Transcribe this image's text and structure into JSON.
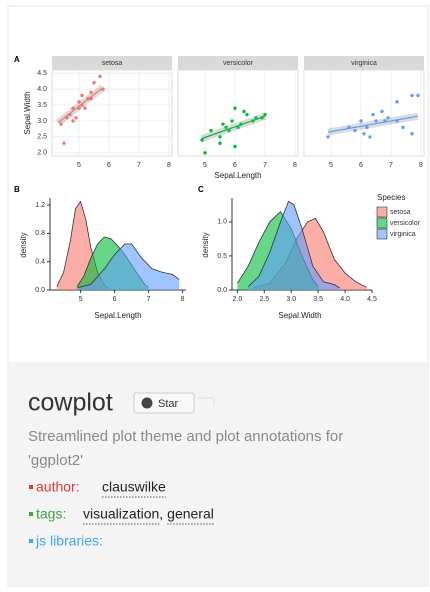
{
  "plot": {
    "panel_a": {
      "label": "A",
      "type": "scatter",
      "xlabel": "Sepal.Length",
      "ylabel": "Sepal.Width",
      "xlim": [
        4.1,
        8.1
      ],
      "ylim": [
        1.9,
        4.6
      ],
      "xticks": [
        5,
        6,
        7,
        8
      ],
      "yticks": [
        {
          "value": 2,
          "label": "2.0"
        },
        2.5,
        {
          "value": 3,
          "label": "3.0"
        },
        3.5,
        {
          "value": 4,
          "label": "4.0"
        },
        4.5
      ],
      "facets": [
        {
          "name": "setosa",
          "color": "#f8766d",
          "x": [
            4.4,
            4.6,
            4.7,
            4.8,
            4.9,
            5.0,
            5.0,
            5.1,
            5.1,
            5.2,
            5.4,
            5.4,
            5.5,
            5.7,
            5.8,
            4.5,
            5.3,
            4.8
          ],
          "y": [
            2.9,
            3.1,
            3.2,
            3.0,
            3.1,
            3.4,
            3.6,
            3.5,
            3.8,
            3.4,
            3.9,
            3.7,
            4.2,
            4.4,
            4.0,
            2.3,
            3.7,
            3.4
          ],
          "fit_x": [
            4.3,
            5.8
          ],
          "fit_y": [
            2.95,
            4.05
          ]
        },
        {
          "name": "versicolor",
          "color": "#00ba38",
          "x": [
            4.9,
            5.0,
            5.2,
            5.5,
            5.6,
            5.7,
            5.8,
            6.0,
            6.0,
            6.1,
            6.2,
            6.3,
            6.4,
            6.6,
            6.7,
            6.9,
            7.0,
            5.9,
            5.5
          ],
          "y": [
            2.4,
            2.0,
            2.7,
            2.3,
            2.9,
            2.8,
            2.7,
            2.2,
            3.4,
            2.8,
            2.9,
            3.3,
            3.2,
            3.0,
            3.1,
            3.1,
            3.2,
            3.0,
            2.5
          ],
          "fit_x": [
            4.9,
            7.0
          ],
          "fit_y": [
            2.45,
            3.15
          ]
        },
        {
          "name": "virginica",
          "color": "#619cff",
          "x": [
            4.9,
            5.8,
            6.0,
            6.2,
            6.3,
            6.4,
            6.5,
            6.7,
            6.9,
            7.2,
            7.7,
            7.7,
            7.9,
            7.2,
            6.1,
            6.8,
            7.4,
            5.6
          ],
          "y": [
            2.5,
            2.7,
            3.0,
            2.8,
            2.5,
            3.2,
            3.0,
            3.3,
            3.1,
            3.6,
            3.8,
            2.6,
            3.8,
            3.0,
            2.6,
            3.0,
            2.8,
            2.8
          ],
          "fit_x": [
            4.9,
            7.9
          ],
          "fit_y": [
            2.65,
            3.15
          ]
        }
      ]
    },
    "panel_b": {
      "label": "B",
      "type": "area",
      "xlabel": "Sepal.Length",
      "ylabel": "density",
      "xlim": [
        4.1,
        8.1
      ],
      "ylim": [
        0,
        1.3
      ],
      "xticks": [
        5,
        6,
        7,
        8
      ],
      "yticks": [
        {
          "value": 0,
          "label": "0.0"
        },
        0.4,
        0.8,
        1.2
      ],
      "series": [
        {
          "name": "setosa",
          "color": "#f8766d",
          "x": [
            4.3,
            4.5,
            4.7,
            4.85,
            5.0,
            5.15,
            5.3,
            5.5,
            5.7,
            5.8
          ],
          "y": [
            0.05,
            0.25,
            0.7,
            1.15,
            1.25,
            1.0,
            0.6,
            0.25,
            0.07,
            0.03
          ]
        },
        {
          "name": "versicolor",
          "color": "#00ba38",
          "x": [
            4.9,
            5.1,
            5.3,
            5.5,
            5.7,
            5.9,
            6.1,
            6.3,
            6.6,
            6.9,
            7.0
          ],
          "y": [
            0.05,
            0.2,
            0.45,
            0.65,
            0.75,
            0.72,
            0.62,
            0.5,
            0.28,
            0.07,
            0.04
          ]
        },
        {
          "name": "virginica",
          "color": "#619cff",
          "x": [
            4.9,
            5.3,
            5.7,
            6.0,
            6.3,
            6.5,
            6.8,
            7.1,
            7.4,
            7.7,
            7.9
          ],
          "y": [
            0.03,
            0.08,
            0.3,
            0.5,
            0.65,
            0.65,
            0.45,
            0.3,
            0.25,
            0.22,
            0.15
          ]
        }
      ]
    },
    "panel_c": {
      "label": "C",
      "type": "area",
      "xlabel": "Sepal.Width",
      "ylabel": "density",
      "xlim": [
        1.9,
        4.5
      ],
      "ylim": [
        0,
        1.35
      ],
      "xticks": [
        {
          "value": 2,
          "label": "2.0"
        },
        2.5,
        {
          "value": 3,
          "label": "3.0"
        },
        3.5,
        {
          "value": 4,
          "label": "4.0"
        },
        4.5
      ],
      "yticks": [
        {
          "value": 0,
          "label": "0.0"
        },
        0.5,
        {
          "value": 1,
          "label": "1.0"
        }
      ],
      "series": [
        {
          "name": "setosa",
          "color": "#f8766d",
          "x": [
            2.3,
            2.6,
            2.9,
            3.1,
            3.3,
            3.45,
            3.6,
            3.8,
            4.0,
            4.2,
            4.4
          ],
          "y": [
            0.03,
            0.1,
            0.4,
            0.75,
            1.0,
            1.05,
            0.85,
            0.45,
            0.25,
            0.12,
            0.04
          ]
        },
        {
          "name": "versicolor",
          "color": "#00ba38",
          "x": [
            2.0,
            2.2,
            2.4,
            2.6,
            2.8,
            3.0,
            3.2,
            3.4,
            3.5
          ],
          "y": [
            0.1,
            0.35,
            0.7,
            1.0,
            1.15,
            0.9,
            0.5,
            0.15,
            0.05
          ]
        },
        {
          "name": "virginica",
          "color": "#619cff",
          "x": [
            2.2,
            2.4,
            2.6,
            2.8,
            2.95,
            3.05,
            3.2,
            3.4,
            3.6,
            3.8,
            3.9
          ],
          "y": [
            0.05,
            0.2,
            0.55,
            1.0,
            1.3,
            1.25,
            0.9,
            0.35,
            0.12,
            0.08,
            0.03
          ]
        }
      ]
    },
    "legend": {
      "title": "Species"
    }
  },
  "card": {
    "title": "cowplot",
    "star": "Star",
    "description": [
      "Streamlined plot theme and plot annotations for",
      "'ggplot2'"
    ],
    "author_label": "author:",
    "author": "clauswilke",
    "tags_label": "tags:",
    "tags": [
      "visualization",
      "general"
    ],
    "tag_separator": ",",
    "js_label": "js libraries:"
  }
}
